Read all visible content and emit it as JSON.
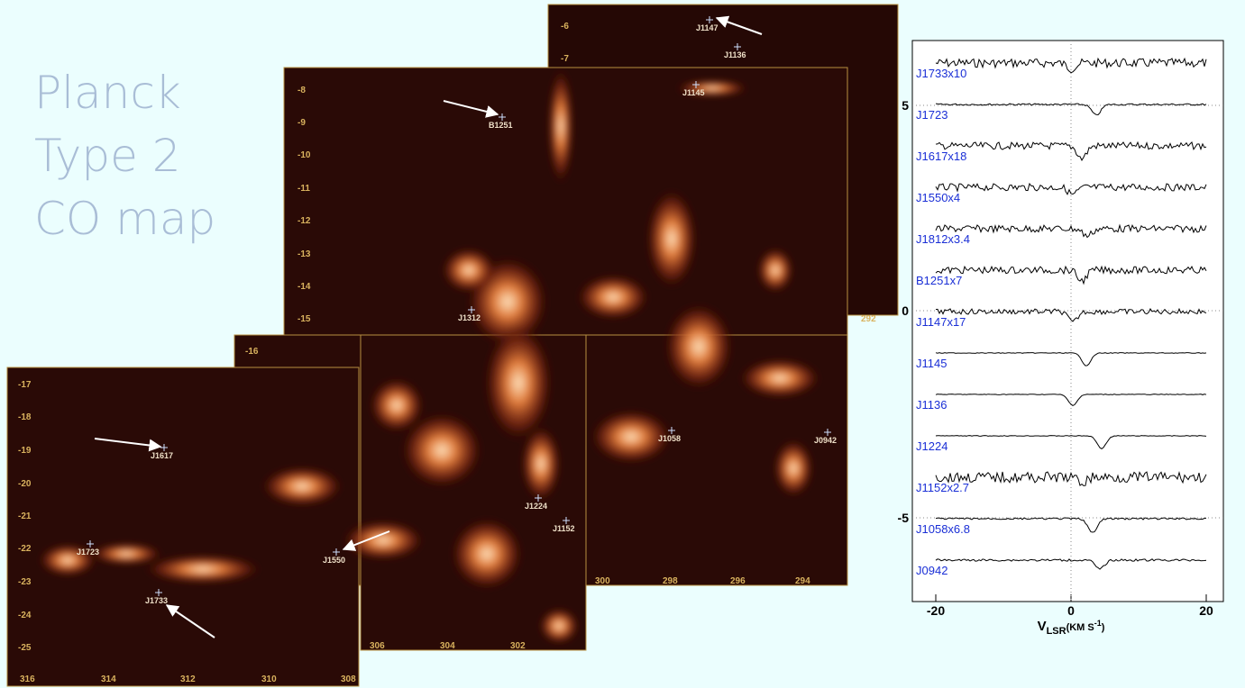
{
  "title": [
    "Planck",
    "Type 2",
    "CO map"
  ],
  "map": {
    "lat_labels": [
      -6,
      -7,
      -8,
      -9,
      -10,
      -11,
      -12,
      -13,
      -14,
      -15,
      -16,
      -17,
      -18,
      -19,
      -20,
      -21,
      -22,
      -23,
      -24,
      -25
    ],
    "lon_labels": [
      316,
      314,
      312,
      310,
      308,
      306,
      304,
      302,
      300,
      298,
      296,
      294,
      292
    ],
    "sources": [
      "J1147",
      "J1136",
      "J1145",
      "B1251",
      "J1312",
      "J1058",
      "J0942",
      "J1224",
      "J1152",
      "J1617",
      "J1723",
      "J1550",
      "J1733"
    ]
  },
  "spectra": {
    "labels": [
      "J1733x10",
      "J1723",
      "J1617x18",
      "J1550x4",
      "J1812x3.4",
      "B1251x7",
      "J1147x17",
      "J1145",
      "J1136",
      "J1224",
      "J1152x2.7",
      "J1058x6.8",
      "J0942"
    ],
    "xticks": [
      -20,
      0,
      20
    ],
    "yticks": [
      5,
      0,
      -5
    ],
    "xlabel": [
      "V",
      "LSR",
      "(KM S",
      "-1",
      ")"
    ]
  }
}
